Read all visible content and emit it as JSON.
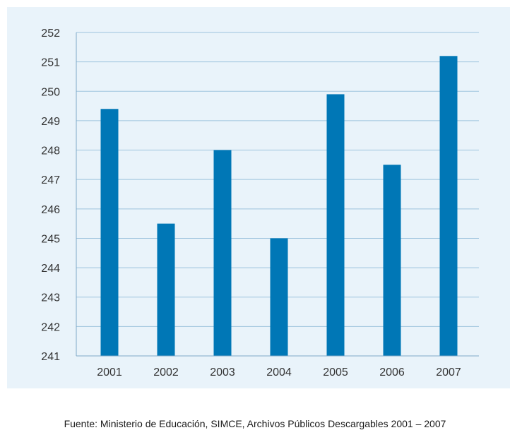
{
  "top_caption": "",
  "source_note": "Fuente: Ministerio de Educación, SIMCE, Archivos Públicos Descargables 2001 – 2007",
  "colors": {
    "bar": "#0077b6",
    "panel_background": "#e9f3fa",
    "gridline": "#9dc3dd",
    "axis_line": "#7fa9c8"
  },
  "chart_data": {
    "type": "bar",
    "title": "",
    "xlabel": "",
    "ylabel": "",
    "categories": [
      "2001",
      "2002",
      "2003",
      "2004",
      "2005",
      "2006",
      "2007"
    ],
    "values": [
      249.4,
      245.5,
      248.0,
      245.0,
      249.9,
      247.5,
      251.2
    ],
    "ylim": [
      241,
      252
    ],
    "yticks": [
      241,
      242,
      243,
      244,
      245,
      246,
      247,
      248,
      249,
      250,
      251,
      252
    ],
    "grid": true,
    "legend": "none"
  }
}
